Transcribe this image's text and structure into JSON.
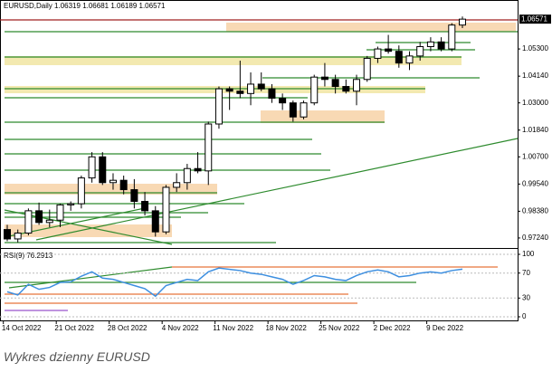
{
  "chart_data": [
    {
      "type": "candlestick",
      "title": "EURUSD,Daily",
      "categories": [
        null,
        "14 Oct 2022",
        null,
        null,
        null,
        null,
        "21 Oct 2022",
        null,
        null,
        null,
        null,
        "28 Oct 2022",
        null,
        null,
        null,
        null,
        "4 Nov 2022",
        null,
        null,
        null,
        null,
        "11 Nov 2022",
        null,
        null,
        null,
        null,
        "18 Nov 2022",
        null,
        null,
        null,
        null,
        "25 Nov 2022",
        null,
        null,
        null,
        null,
        "2 Dec 2022",
        null,
        null,
        null,
        null,
        "9 Dec 2022",
        null,
        null
      ],
      "open": [
        0.976,
        0.972,
        0.9745,
        0.984,
        0.979,
        0.98,
        0.9865,
        0.987,
        0.998,
        1.007,
        0.996,
        0.997,
        0.993,
        0.988,
        0.984,
        0.975,
        0.994,
        0.996,
        1.002,
        1.001,
        1.021,
        1.036,
        1.035,
        1.034,
        1.038,
        1.036,
        1.032,
        1.03,
        1.024,
        1.03,
        1.041,
        1.04,
        1.037,
        1.035,
        1.04,
        1.049,
        1.053,
        1.052,
        1.047,
        1.05,
        1.054,
        1.056,
        1.053,
        1.06319
      ],
      "high": [
        0.978,
        0.976,
        0.985,
        0.9875,
        0.9845,
        0.987,
        0.988,
        0.999,
        1.009,
        1.009,
        1.0,
        0.999,
        0.9975,
        0.992,
        0.986,
        0.995,
        1.0,
        1.004,
        1.009,
        1.022,
        1.037,
        1.037,
        1.048,
        1.043,
        1.043,
        1.038,
        1.034,
        1.031,
        1.031,
        1.042,
        1.047,
        1.042,
        1.04,
        1.042,
        1.05,
        1.054,
        1.059,
        1.0545,
        1.052,
        1.056,
        1.058,
        1.058,
        1.064,
        1.06681
      ],
      "low": [
        0.971,
        0.9705,
        0.9735,
        0.978,
        0.977,
        0.977,
        0.984,
        0.985,
        0.996,
        0.995,
        0.993,
        0.991,
        0.985,
        0.982,
        0.973,
        0.974,
        0.992,
        0.993,
        1.0,
        0.995,
        1.019,
        1.027,
        1.032,
        1.029,
        1.035,
        1.03,
        1.027,
        1.022,
        1.023,
        1.029,
        1.037,
        1.034,
        1.034,
        1.029,
        1.039,
        1.047,
        1.051,
        1.045,
        1.044,
        1.048,
        1.052,
        1.052,
        1.052,
        1.06189
      ],
      "close": [
        0.972,
        0.9745,
        0.984,
        0.979,
        0.98,
        0.9865,
        0.987,
        0.998,
        1.007,
        0.996,
        0.997,
        0.993,
        0.988,
        0.984,
        0.975,
        0.994,
        0.996,
        1.002,
        1.001,
        1.021,
        1.036,
        1.035,
        1.034,
        1.038,
        1.036,
        1.032,
        1.03,
        1.024,
        1.03,
        1.041,
        1.04,
        1.037,
        1.035,
        1.04,
        1.049,
        1.053,
        1.052,
        1.047,
        1.05,
        1.054,
        1.056,
        1.053,
        1.06319,
        1.06571
      ],
      "ylim": [
        0.9689,
        1.0731
      ],
      "yticks": [
        {
          "value": 1.053,
          "label": "1.05300"
        },
        {
          "value": 1.0414,
          "label": "1.04140"
        },
        {
          "value": 1.03,
          "label": "1.03000"
        },
        {
          "value": 1.0184,
          "label": "1.01840"
        },
        {
          "value": 1.007,
          "label": "1.00700"
        },
        {
          "value": 0.9954,
          "label": "0.99540"
        },
        {
          "value": 0.9838,
          "label": "0.98380"
        },
        {
          "value": 0.9724,
          "label": "0.97240"
        }
      ]
    },
    {
      "type": "line",
      "title": "RSI(9)",
      "color": "#3d8fe0",
      "values": [
        40,
        35,
        52,
        44,
        47,
        55,
        56,
        65,
        72,
        62,
        60,
        55,
        50,
        45,
        33,
        50,
        55,
        60,
        58,
        72,
        78,
        76,
        74,
        70,
        68,
        64,
        60,
        52,
        58,
        66,
        64,
        60,
        58,
        66,
        72,
        75,
        72,
        64,
        66,
        70,
        72,
        70,
        74,
        76.2913
      ],
      "ylim": [
        0,
        100
      ],
      "yticks": [
        100,
        70,
        30,
        0
      ]
    }
  ],
  "caption": "Wykres dzienny EURUSD"
}
